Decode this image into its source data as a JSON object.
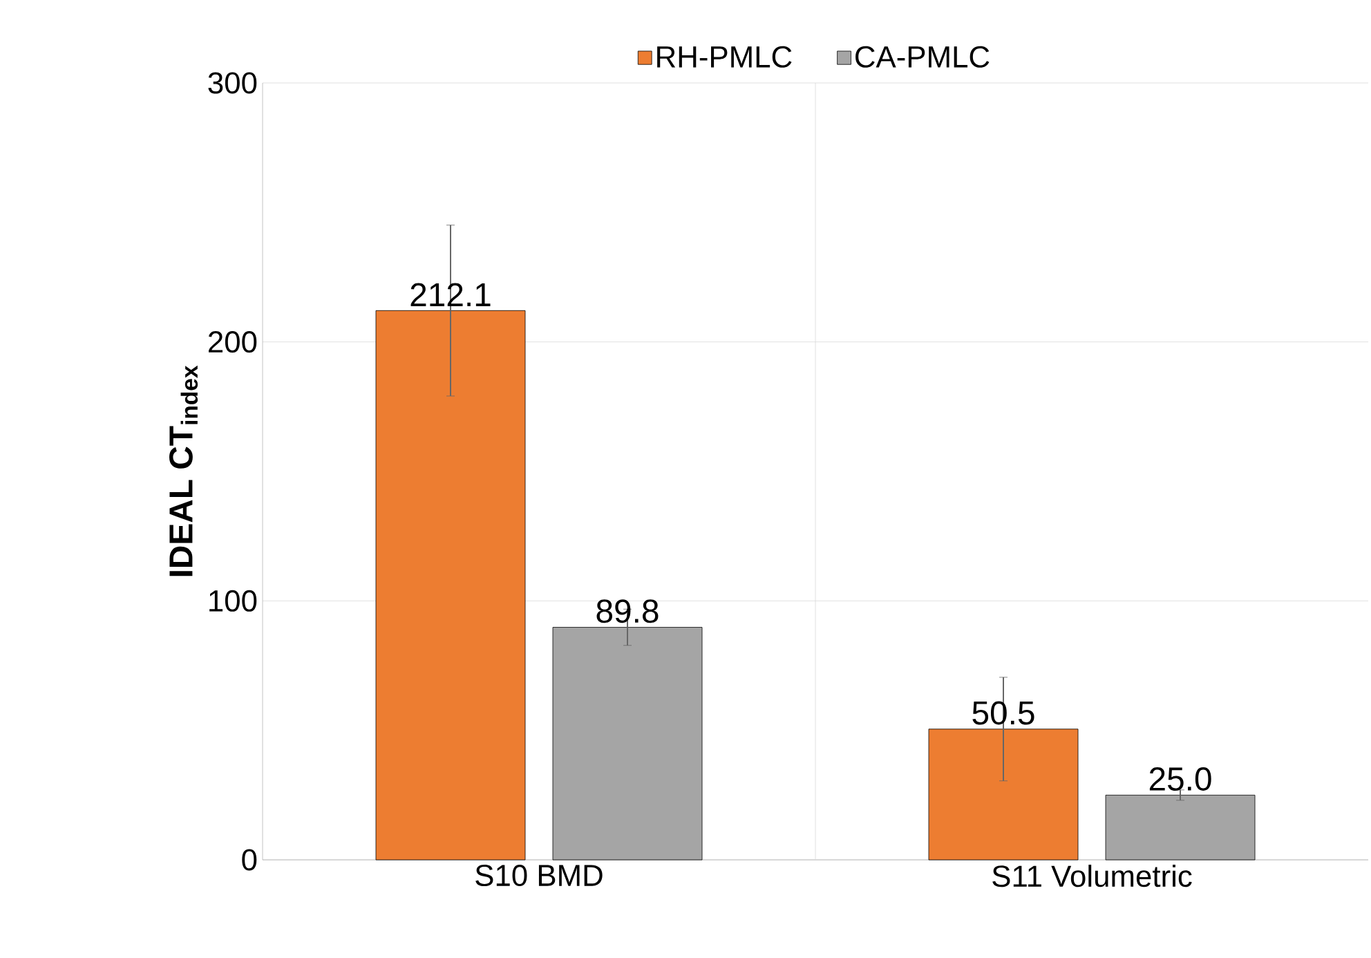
{
  "chart_data": {
    "type": "bar",
    "ylabel": "IDEAL CT$_{index}$",
    "categories": [
      "S10 BMD",
      "S11 Volumetric"
    ],
    "series": [
      {
        "name": "RH-PMLC",
        "color": "#ed7d31",
        "values": [
          212.1,
          50.5
        ],
        "errors": [
          33,
          20
        ],
        "value_labels": [
          "212.1",
          "50.5"
        ]
      },
      {
        "name": "CA-PMLC",
        "color": "#a5a5a5",
        "values": [
          89.8,
          25.0
        ],
        "errors": [
          7,
          2
        ],
        "value_labels": [
          "89.8",
          "25.0"
        ]
      }
    ],
    "ylim": [
      0,
      300
    ],
    "yticks": [
      0,
      100,
      200,
      300
    ],
    "grid": true,
    "legend": "top"
  }
}
